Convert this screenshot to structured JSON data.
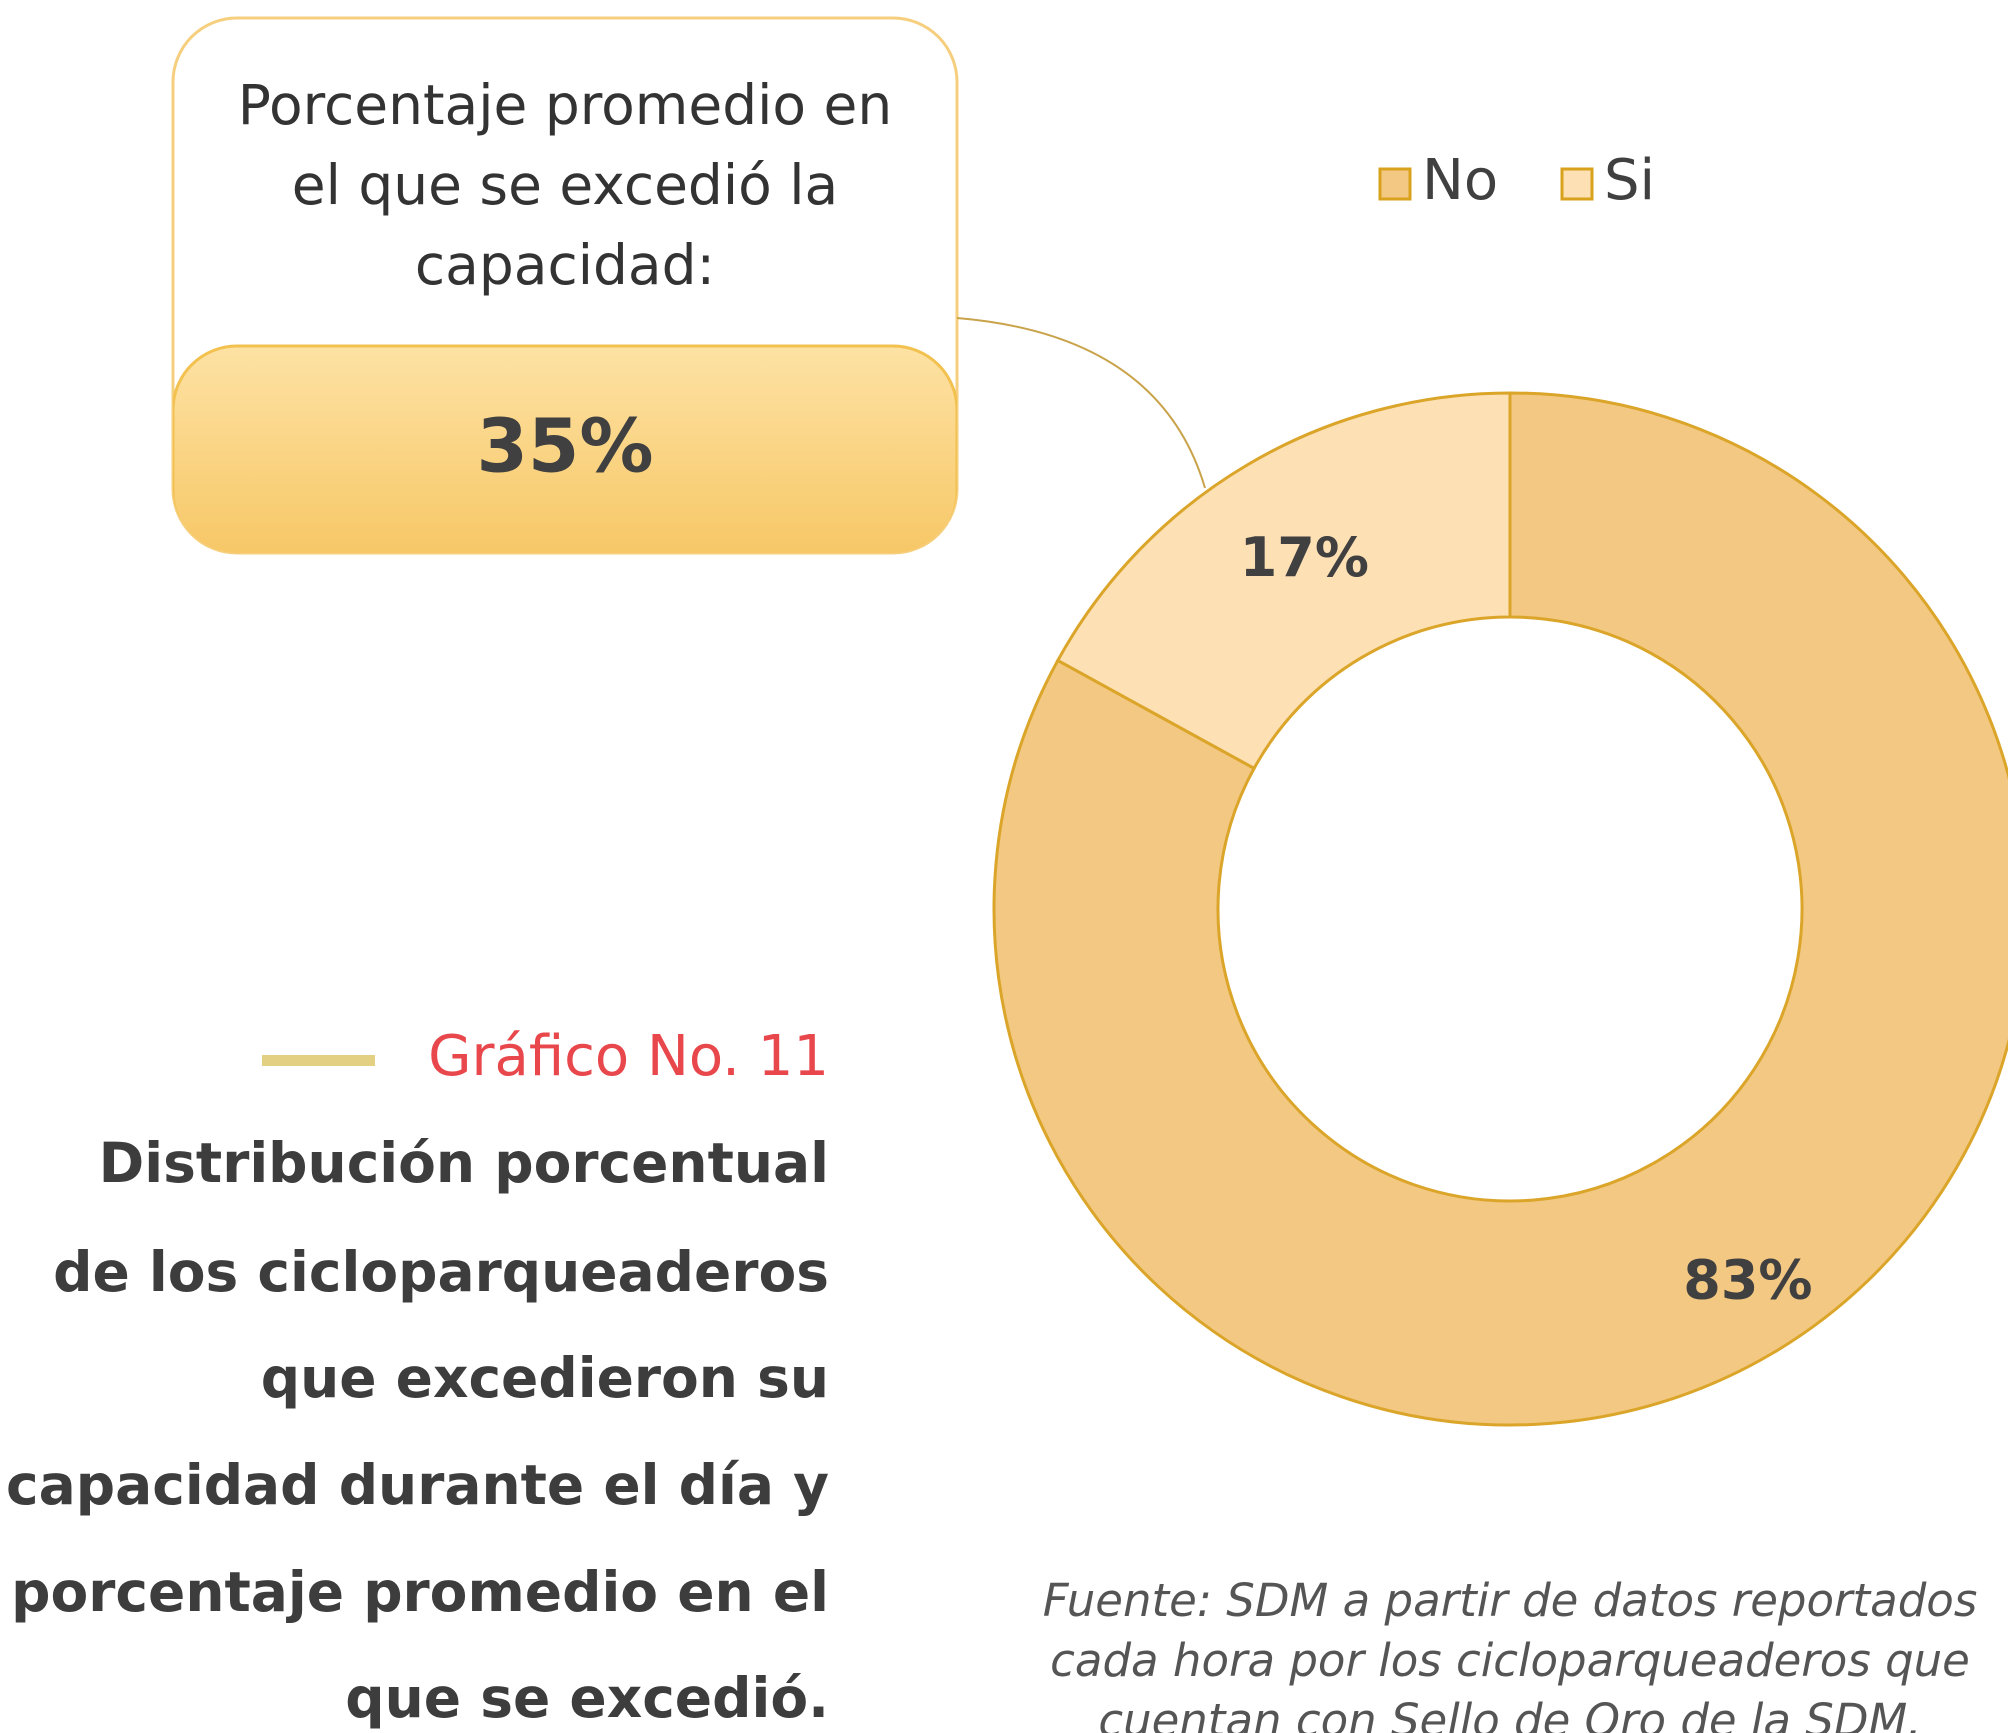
{
  "chart_data": {
    "type": "donut",
    "categories": [
      "No",
      "Si"
    ],
    "values": [
      83,
      17
    ],
    "value_labels": [
      "83%",
      "17%"
    ],
    "colors": [
      "#f3c882",
      "#fde0b4"
    ],
    "legend": "top",
    "callout": {
      "text": [
        "Porcentaje promedio en",
        "el que se excedió la",
        "capacidad:"
      ],
      "value": 35,
      "label": "35%"
    },
    "figure_label": "Gráfico No. 11",
    "caption": [
      "Distribución porcentual",
      "de los cicloparqueaderos",
      "que excedieron su",
      "capacidad durante el día y",
      "porcentaje promedio en el",
      "que se excedió."
    ],
    "source": [
      "Fuente: SDM a partir de datos reportados",
      "cada hora por los cicloparqueaderos que",
      "cuentan con Sello de Oro de la SDM."
    ]
  }
}
